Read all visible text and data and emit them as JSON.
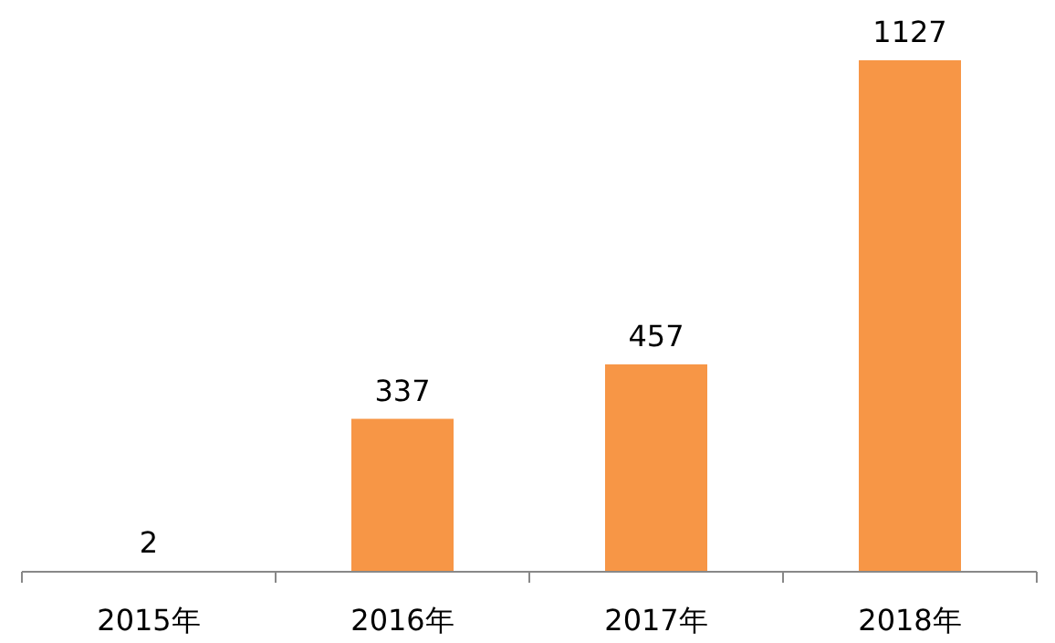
{
  "chart_data": {
    "type": "bar",
    "categories": [
      "2015年",
      "2016年",
      "2017年",
      "2018年"
    ],
    "values": [
      2,
      337,
      457,
      1127
    ],
    "color": "#f79646",
    "data_labels": true
  }
}
